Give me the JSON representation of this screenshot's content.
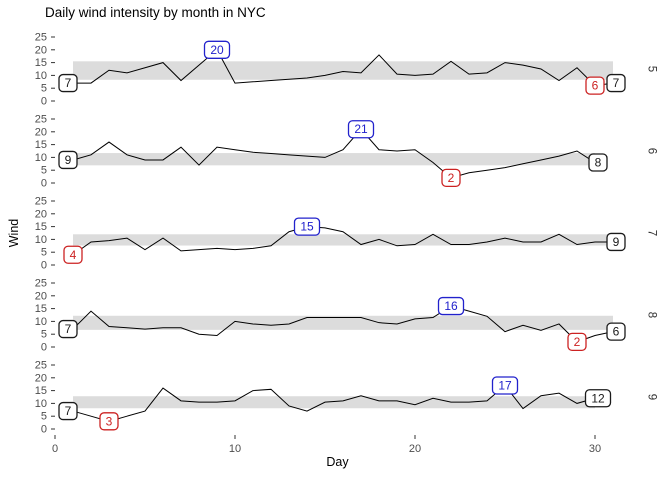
{
  "title": "Daily wind intensity by month in NYC",
  "x_axis": {
    "label": "Day",
    "ticks": [
      0,
      10,
      20,
      30
    ],
    "range": [
      0,
      31
    ]
  },
  "y_axis": {
    "label": "Wind",
    "ticks": [
      0,
      5,
      10,
      15,
      20,
      25
    ],
    "range": [
      0,
      25
    ]
  },
  "colors": {
    "line": "#000000",
    "band": "#DCDCDC",
    "max_label": "#2222CC",
    "min_label": "#CC2222",
    "endpoint_label": "#1A1A1A",
    "label_fill": "#FFFFFF",
    "tick_text": "#4D4D4D",
    "tick_mark": "#333333",
    "strip_text": "#333333"
  },
  "chart_data": {
    "type": "line",
    "title": "Daily wind intensity by month in NYC",
    "xlabel": "Day",
    "ylabel": "Wind",
    "xlim": [
      0,
      31
    ],
    "ylim_per_facet": [
      0,
      25
    ],
    "grid": "off",
    "facet_side": "right",
    "facets": [
      {
        "month": "5",
        "band": [
          8.3,
          15.5
        ],
        "values": [
          7,
          7,
          12,
          11,
          13,
          15,
          8,
          14,
          20,
          7,
          7.5,
          8,
          8.5,
          9,
          10,
          11.5,
          11,
          18,
          10.5,
          10,
          10.5,
          15.5,
          10.5,
          11,
          15,
          14,
          12.5,
          8,
          13,
          6,
          7
        ],
        "labels": [
          {
            "type": "first",
            "day": 1,
            "value": 7,
            "text": "7"
          },
          {
            "type": "max",
            "day": 9,
            "value": 20,
            "text": "20"
          },
          {
            "type": "min",
            "day": 30,
            "value": 6,
            "text": "6"
          },
          {
            "type": "last",
            "day": 31,
            "value": 7,
            "text": "7"
          }
        ]
      },
      {
        "month": "6",
        "band": [
          6.9,
          11.7
        ],
        "values": [
          9,
          11,
          16,
          11,
          9,
          9,
          14,
          7,
          14,
          13,
          12,
          11.5,
          11,
          10.5,
          10,
          13,
          21,
          13,
          12.5,
          13,
          8,
          2,
          4,
          5,
          6,
          7.5,
          9,
          10.5,
          12.5,
          8
        ],
        "labels": [
          {
            "type": "first",
            "day": 1,
            "value": 9,
            "text": "9"
          },
          {
            "type": "max",
            "day": 17,
            "value": 21,
            "text": "21"
          },
          {
            "type": "min",
            "day": 22,
            "value": 2,
            "text": "2"
          },
          {
            "type": "last",
            "day": 30,
            "value": 8,
            "text": "8"
          }
        ]
      },
      {
        "month": "7",
        "band": [
          7.6,
          12.0
        ],
        "values": [
          4,
          9,
          9.5,
          10.5,
          6,
          10.5,
          5.5,
          6,
          6.5,
          6,
          6.5,
          7.5,
          13,
          15,
          14.5,
          13,
          8,
          10,
          7.5,
          8,
          12,
          8,
          8,
          9,
          10.5,
          9,
          9,
          12,
          8,
          9,
          9
        ],
        "labels": [
          {
            "type": "min",
            "day": 1,
            "value": 4,
            "text": "4"
          },
          {
            "type": "max",
            "day": 14,
            "value": 15,
            "text": "15"
          },
          {
            "type": "last",
            "day": 31,
            "value": 9,
            "text": "9"
          }
        ]
      },
      {
        "month": "8",
        "band": [
          6.7,
          12.2
        ],
        "values": [
          7,
          14,
          8,
          7.5,
          7,
          7.5,
          7.5,
          5,
          4.5,
          10,
          9,
          8.5,
          9,
          11.5,
          11.5,
          11.5,
          11.5,
          9.5,
          9,
          11,
          11.5,
          16,
          14,
          12,
          6,
          8.5,
          6.5,
          9,
          2,
          4.5,
          6
        ],
        "labels": [
          {
            "type": "first",
            "day": 1,
            "value": 7,
            "text": "7"
          },
          {
            "type": "max",
            "day": 22,
            "value": 16,
            "text": "16"
          },
          {
            "type": "min",
            "day": 29,
            "value": 2,
            "text": "2"
          },
          {
            "type": "last",
            "day": 31,
            "value": 6,
            "text": "6"
          }
        ]
      },
      {
        "month": "9",
        "band": [
          8.1,
          12.8
        ],
        "values": [
          7,
          5,
          3,
          5,
          7,
          16,
          11,
          10.5,
          10.5,
          11,
          15,
          15.5,
          9,
          7,
          10.5,
          11,
          13,
          11,
          11,
          9.5,
          12,
          10.5,
          10.5,
          11,
          17,
          8,
          13,
          14,
          10,
          12
        ],
        "labels": [
          {
            "type": "first",
            "day": 1,
            "value": 7,
            "text": "7"
          },
          {
            "type": "min",
            "day": 3,
            "value": 3,
            "text": "3"
          },
          {
            "type": "max",
            "day": 25,
            "value": 17,
            "text": "17"
          },
          {
            "type": "last",
            "day": 30,
            "value": 12,
            "text": "12"
          }
        ]
      }
    ]
  }
}
